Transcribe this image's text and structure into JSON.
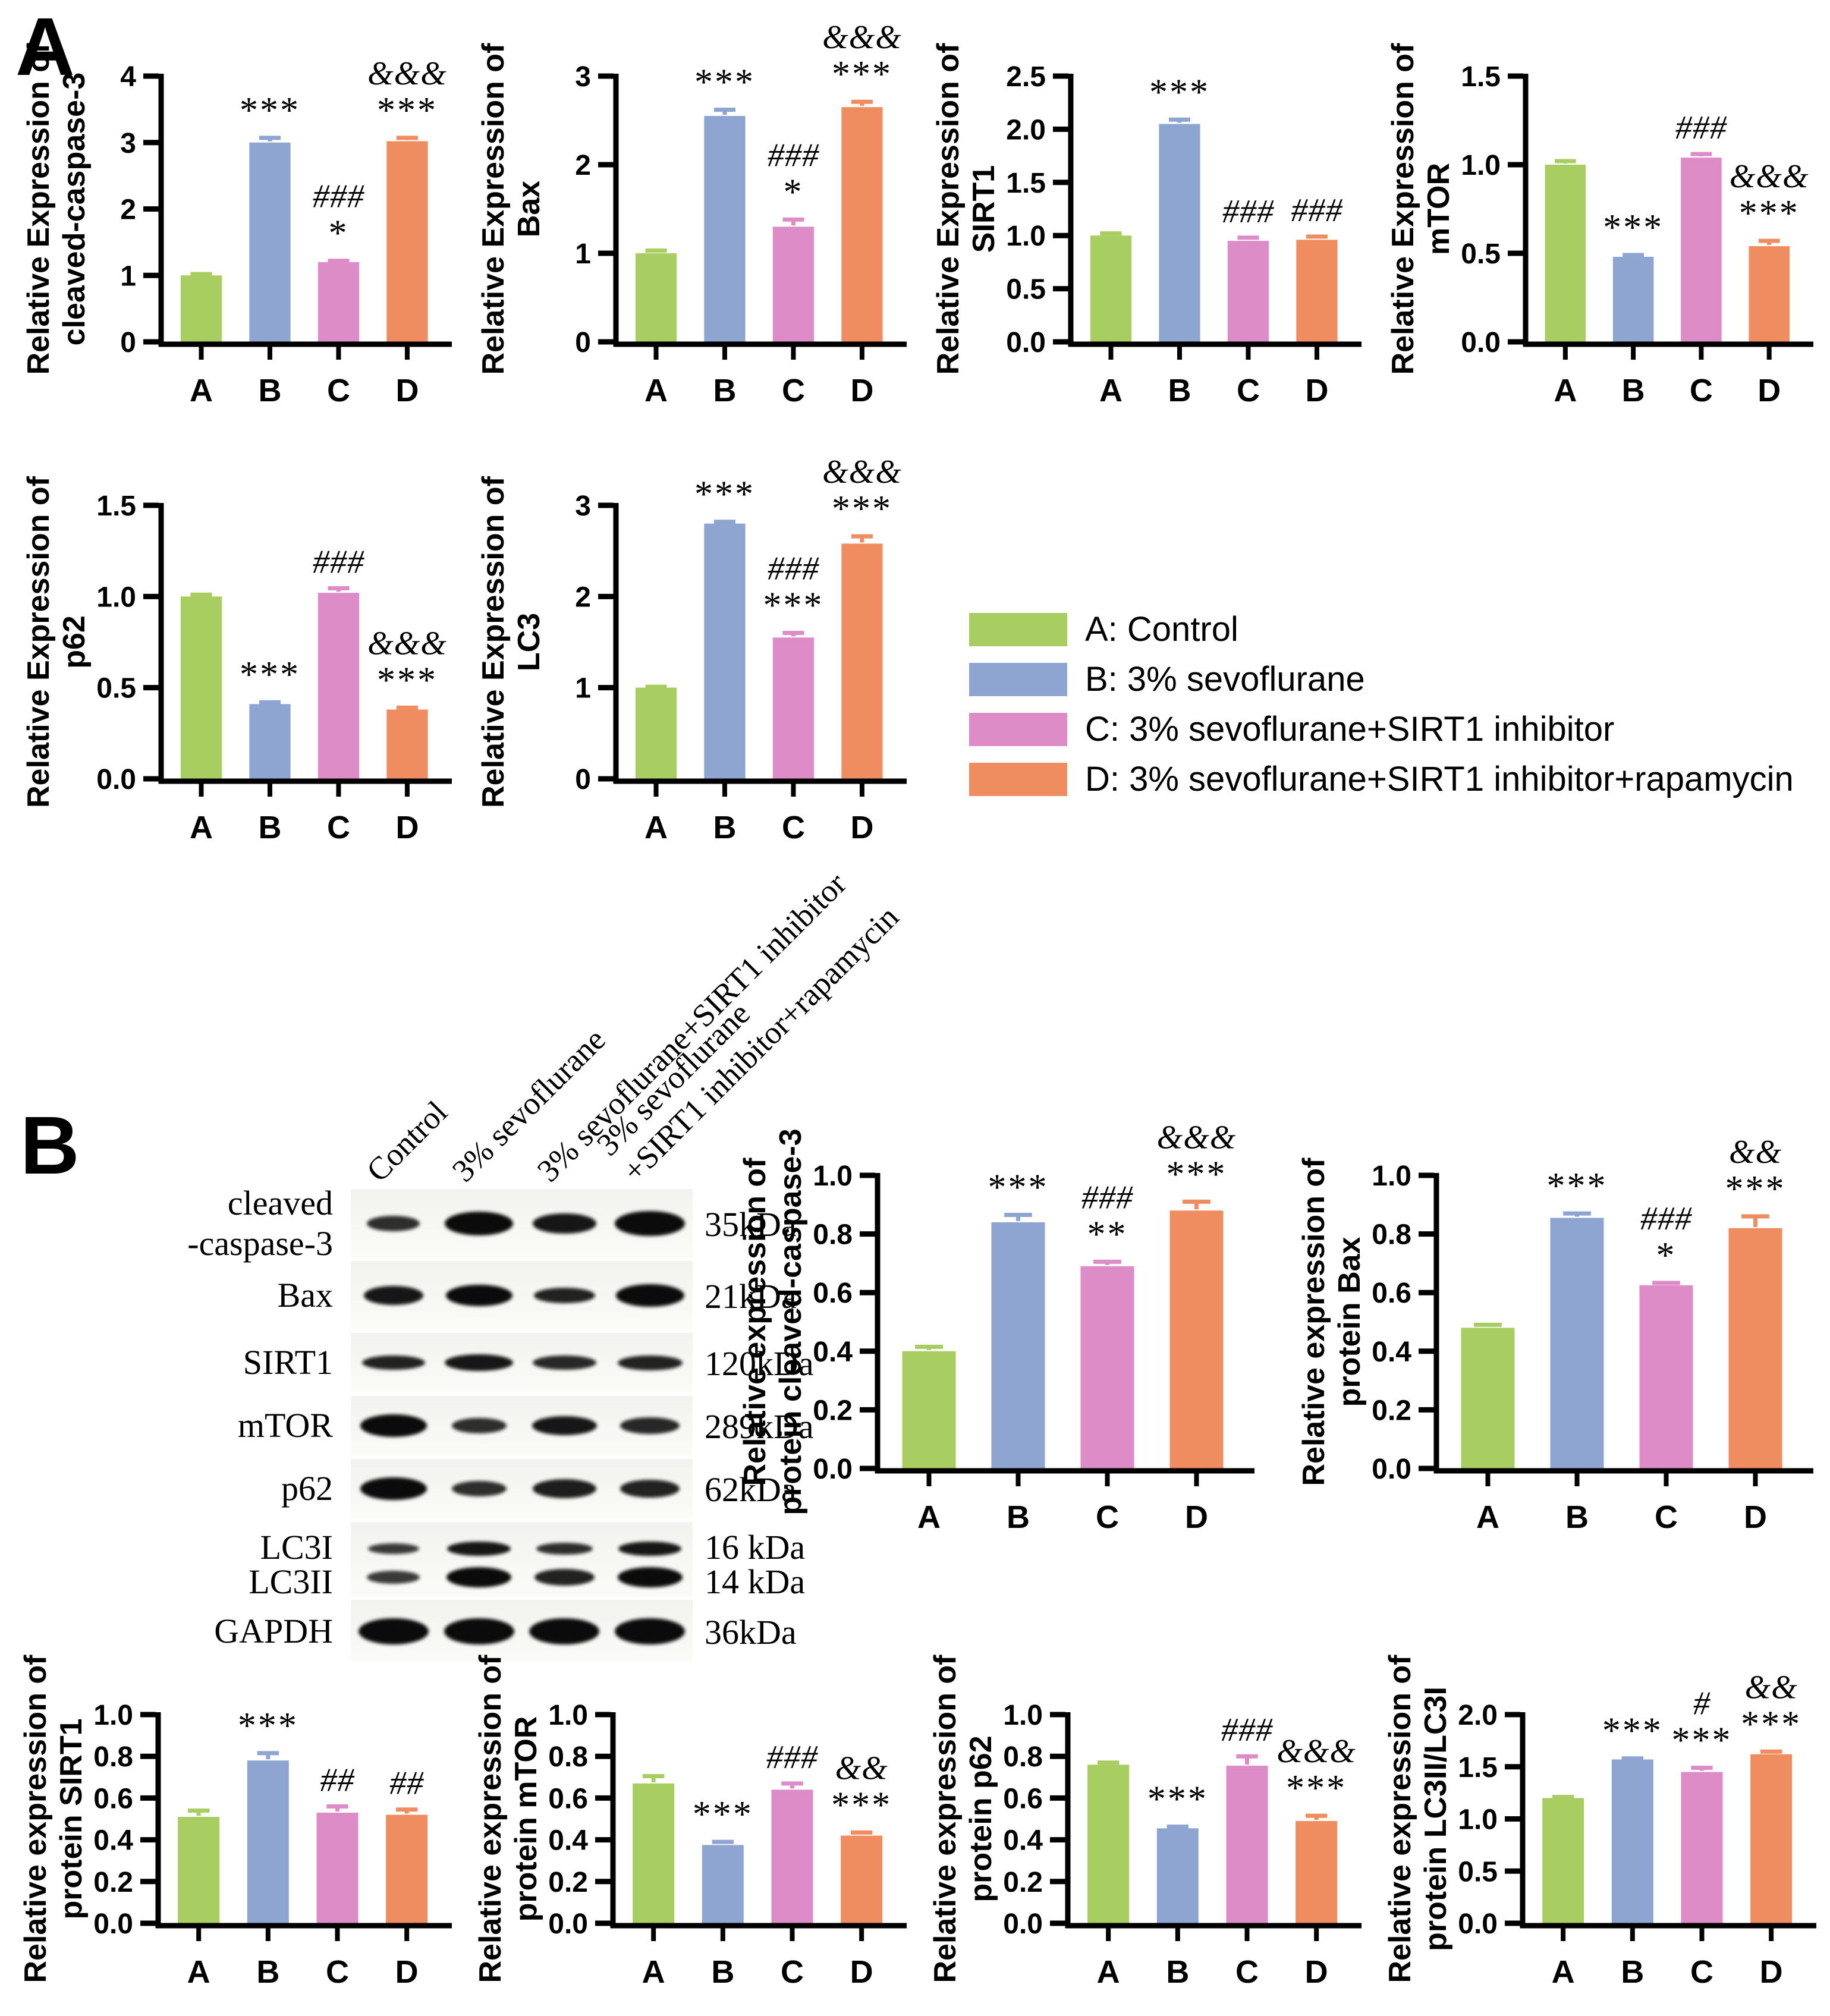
{
  "figure": {
    "panel_a_label": "A",
    "panel_b_label": "B"
  },
  "colors": {
    "groups": [
      "#a8cd60",
      "#8da5d0",
      "#dd8cc7",
      "#ef8d61"
    ],
    "axis": "#000000"
  },
  "legend": {
    "items": [
      {
        "label": "A: Control"
      },
      {
        "label": "B: 3% sevoflurane"
      },
      {
        "label": "C: 3% sevoflurane+SIRT1 inhibitor"
      },
      {
        "label": "D: 3% sevoflurane+SIRT1 inhibitor+rapamycin"
      }
    ]
  },
  "chart_data": [
    {
      "id": "a-caspase3",
      "panel": "A",
      "type": "bar",
      "categories": [
        "A",
        "B",
        "C",
        "D"
      ],
      "ylabel": [
        "Relative Expression of",
        "cleaved-caspase-3"
      ],
      "yticks": [
        "0",
        "1",
        "2",
        "3",
        "4"
      ],
      "ylim": [
        0,
        4
      ],
      "grid": false,
      "values": [
        1.0,
        3.0,
        1.2,
        3.02
      ],
      "errors": [
        0.02,
        0.07,
        0.02,
        0.05
      ],
      "annotations": [
        "",
        "***",
        "###\n*",
        "&&&\n***"
      ]
    },
    {
      "id": "a-bax",
      "panel": "A",
      "type": "bar",
      "categories": [
        "A",
        "B",
        "C",
        "D"
      ],
      "ylabel": [
        "Relative Expression of",
        "Bax"
      ],
      "yticks": [
        "0",
        "1",
        "2",
        "3"
      ],
      "ylim": [
        0,
        3
      ],
      "grid": false,
      "values": [
        1.0,
        2.55,
        1.3,
        2.65
      ],
      "errors": [
        0.03,
        0.07,
        0.08,
        0.06
      ],
      "annotations": [
        "",
        "***",
        "###\n*",
        "&&&\n***"
      ]
    },
    {
      "id": "a-sirt1",
      "panel": "A",
      "type": "bar",
      "categories": [
        "A",
        "B",
        "C",
        "D"
      ],
      "ylabel": [
        "Relative Expression of",
        "SIRT1"
      ],
      "yticks": [
        "0.0",
        "0.5",
        "1.0",
        "1.5",
        "2.0",
        "2.5"
      ],
      "ylim": [
        0,
        2.5
      ],
      "grid": false,
      "values": [
        1.0,
        2.05,
        0.95,
        0.96
      ],
      "errors": [
        0.02,
        0.04,
        0.03,
        0.03
      ],
      "annotations": [
        "",
        "***",
        "###",
        "###"
      ]
    },
    {
      "id": "a-mtor",
      "panel": "A",
      "type": "bar",
      "categories": [
        "A",
        "B",
        "C",
        "D"
      ],
      "ylabel": [
        "Relative Expression of",
        "mTOR"
      ],
      "yticks": [
        "0.0",
        "0.5",
        "1.0",
        "1.5"
      ],
      "ylim": [
        0,
        1.5
      ],
      "grid": false,
      "values": [
        1.0,
        0.48,
        1.04,
        0.54
      ],
      "errors": [
        0.02,
        0.01,
        0.02,
        0.03
      ],
      "annotations": [
        "",
        "***",
        "###",
        "&&&\n***"
      ]
    },
    {
      "id": "a-p62",
      "panel": "A",
      "type": "bar",
      "categories": [
        "A",
        "B",
        "C",
        "D"
      ],
      "ylabel": [
        "Relative Expression of",
        "p62"
      ],
      "yticks": [
        "0.0",
        "0.5",
        "1.0",
        "1.5"
      ],
      "ylim": [
        0,
        1.5
      ],
      "grid": false,
      "values": [
        1.0,
        0.41,
        1.02,
        0.38
      ],
      "errors": [
        0.01,
        0.01,
        0.025,
        0.01
      ],
      "annotations": [
        "",
        "***",
        "###",
        "&&&\n***"
      ]
    },
    {
      "id": "a-lc3",
      "panel": "A",
      "type": "bar",
      "categories": [
        "A",
        "B",
        "C",
        "D"
      ],
      "ylabel": [
        "Relative Expression of",
        "LC3"
      ],
      "yticks": [
        "0",
        "1",
        "2",
        "3"
      ],
      "ylim": [
        0,
        3
      ],
      "grid": false,
      "values": [
        1.0,
        2.8,
        1.55,
        2.58
      ],
      "errors": [
        0.01,
        0.02,
        0.05,
        0.08
      ],
      "annotations": [
        "",
        "***",
        "###\n***",
        "&&&\n***"
      ]
    },
    {
      "id": "b-caspase3",
      "panel": "B",
      "type": "bar",
      "categories": [
        "A",
        "B",
        "C",
        "D"
      ],
      "ylabel": [
        "Relative expression of",
        "protein cleaved-caspase-3"
      ],
      "yticks": [
        "0.0",
        "0.2",
        "0.4",
        "0.6",
        "0.8",
        "1.0"
      ],
      "ylim": [
        0,
        1
      ],
      "grid": false,
      "values": [
        0.4,
        0.84,
        0.69,
        0.88
      ],
      "errors": [
        0.015,
        0.025,
        0.015,
        0.03
      ],
      "annotations": [
        "",
        "***",
        "###\n**",
        "&&&\n***"
      ]
    },
    {
      "id": "b-bax",
      "panel": "B",
      "type": "bar",
      "categories": [
        "A",
        "B",
        "C",
        "D"
      ],
      "ylabel": [
        "Relative expression of",
        "protein Bax"
      ],
      "yticks": [
        "0.0",
        "0.2",
        "0.4",
        "0.6",
        "0.8",
        "1.0"
      ],
      "ylim": [
        0,
        1
      ],
      "grid": false,
      "values": [
        0.48,
        0.855,
        0.625,
        0.82
      ],
      "errors": [
        0.01,
        0.015,
        0.008,
        0.04
      ],
      "annotations": [
        "",
        "***",
        "###\n*",
        "&&\n***"
      ]
    },
    {
      "id": "b-sirt1",
      "panel": "B",
      "type": "bar",
      "categories": [
        "A",
        "B",
        "C",
        "D"
      ],
      "ylabel": [
        "Relative expression of",
        "protein SIRT1"
      ],
      "yticks": [
        "0.0",
        "0.2",
        "0.4",
        "0.6",
        "0.8",
        "1.0"
      ],
      "ylim": [
        0,
        1
      ],
      "grid": false,
      "values": [
        0.51,
        0.78,
        0.53,
        0.52
      ],
      "errors": [
        0.03,
        0.035,
        0.03,
        0.025
      ],
      "annotations": [
        "",
        "***",
        "##",
        "##"
      ]
    },
    {
      "id": "b-mtor",
      "panel": "B",
      "type": "bar",
      "categories": [
        "A",
        "B",
        "C",
        "D"
      ],
      "ylabel": [
        "Relative expression of",
        "protein mTOR"
      ],
      "yticks": [
        "0.0",
        "0.2",
        "0.4",
        "0.6",
        "0.8",
        "1.0"
      ],
      "ylim": [
        0,
        1
      ],
      "grid": false,
      "values": [
        0.67,
        0.375,
        0.64,
        0.42
      ],
      "errors": [
        0.035,
        0.015,
        0.03,
        0.015
      ],
      "annotations": [
        "",
        "***",
        "###",
        "&&\n***"
      ]
    },
    {
      "id": "b-p62",
      "panel": "B",
      "type": "bar",
      "categories": [
        "A",
        "B",
        "C",
        "D"
      ],
      "ylabel": [
        "Relative expression of",
        "protein p62"
      ],
      "yticks": [
        "0.0",
        "0.2",
        "0.4",
        "0.6",
        "0.8",
        "1.0"
      ],
      "ylim": [
        0,
        1
      ],
      "grid": false,
      "values": [
        0.76,
        0.455,
        0.755,
        0.49
      ],
      "errors": [
        0.01,
        0.008,
        0.045,
        0.025
      ],
      "annotations": [
        "",
        "***",
        "###",
        "&&&\n***"
      ]
    },
    {
      "id": "b-lc3ratio",
      "panel": "B",
      "type": "bar",
      "categories": [
        "A",
        "B",
        "C",
        "D"
      ],
      "ylabel": [
        "Relative expression of",
        "protein LC3II/LC3I"
      ],
      "yticks": [
        "0.0",
        "0.5",
        "1.0",
        "1.5",
        "2.0"
      ],
      "ylim": [
        0,
        2
      ],
      "grid": false,
      "values": [
        1.2,
        1.57,
        1.45,
        1.62
      ],
      "errors": [
        0.01,
        0.01,
        0.04,
        0.025
      ],
      "annotations": [
        "",
        "***",
        "#\n***",
        "&&\n***"
      ]
    }
  ],
  "blot": {
    "col_labels": [
      [
        "Control"
      ],
      [
        "3% sevoflurane"
      ],
      [
        "3% sevoflurane+SIRT1 inhibitor"
      ],
      [
        "3% sevoflurane",
        "+SIRT1 inhibitor+rapamycin"
      ]
    ],
    "rows": [
      {
        "label": [
          "cleaved",
          "-caspase-3"
        ],
        "kda": [
          "35kDa"
        ],
        "bands": [
          [
            0.62,
            26,
            0.85
          ],
          [
            0.8,
            40,
            1
          ],
          [
            0.74,
            34,
            0.95
          ],
          [
            0.82,
            42,
            1
          ]
        ]
      },
      {
        "label": [
          "Bax"
        ],
        "kda": [
          "21kDa"
        ],
        "bands": [
          [
            0.7,
            32,
            0.95
          ],
          [
            0.78,
            36,
            1
          ],
          [
            0.72,
            26,
            0.9
          ],
          [
            0.8,
            38,
            1
          ]
        ]
      },
      {
        "label": [
          "SIRT1"
        ],
        "kda": [
          "120kDa"
        ],
        "bands": [
          [
            0.74,
            24,
            0.9
          ],
          [
            0.8,
            28,
            0.95
          ],
          [
            0.74,
            24,
            0.88
          ],
          [
            0.76,
            25,
            0.9
          ]
        ]
      },
      {
        "label": [
          "mTOR"
        ],
        "kda": [
          "289kDa"
        ],
        "bands": [
          [
            0.78,
            38,
            1
          ],
          [
            0.64,
            26,
            0.85
          ],
          [
            0.76,
            32,
            0.95
          ],
          [
            0.7,
            28,
            0.88
          ]
        ]
      },
      {
        "label": [
          "p62"
        ],
        "kda": [
          "62kDa"
        ],
        "bands": [
          [
            0.78,
            38,
            1
          ],
          [
            0.64,
            26,
            0.85
          ],
          [
            0.74,
            32,
            0.92
          ],
          [
            0.7,
            30,
            0.9
          ]
        ]
      },
      {
        "label": [
          "LC3I",
          "LC3II"
        ],
        "kda": [
          "16 kDa",
          "14 kDa"
        ],
        "bands": [
          [
            0.6,
            18,
            0.8
          ],
          [
            0.74,
            24,
            0.95
          ],
          [
            0.66,
            20,
            0.85
          ],
          [
            0.74,
            24,
            0.95
          ]
        ],
        "bands2": [
          [
            0.62,
            22,
            0.8
          ],
          [
            0.76,
            34,
            1
          ],
          [
            0.7,
            28,
            0.9
          ],
          [
            0.76,
            34,
            1
          ]
        ]
      },
      {
        "label": [
          "GAPDH"
        ],
        "kda": [
          "36kDa"
        ],
        "bands": [
          [
            0.82,
            44,
            1
          ],
          [
            0.82,
            44,
            1
          ],
          [
            0.82,
            44,
            1
          ],
          [
            0.82,
            44,
            1
          ]
        ]
      }
    ]
  }
}
